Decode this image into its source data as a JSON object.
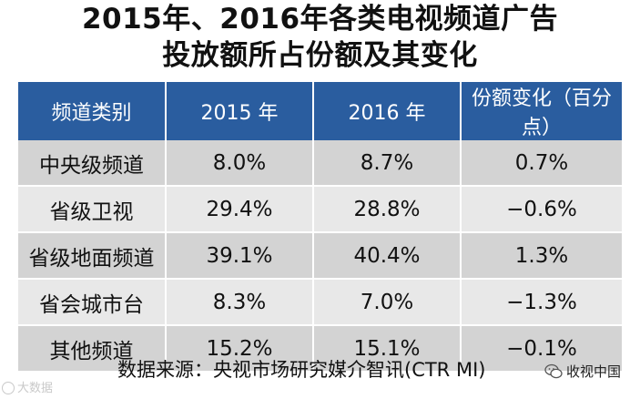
{
  "title": {
    "line1": "2015年、2016年各类电视频道广告",
    "line2": "投放额所占份额及其变化"
  },
  "table": {
    "headers": [
      "频道类别",
      "2015 年",
      "2016 年",
      "份额变化（百分点）"
    ],
    "rows": [
      [
        "中央级频道",
        "8.0%",
        "8.7%",
        "0.7%"
      ],
      [
        "省级卫视",
        "29.4%",
        "28.8%",
        "−0.6%"
      ],
      [
        "省级地面频道",
        "39.1%",
        "40.4%",
        "1.3%"
      ],
      [
        "省会城市台",
        "8.3%",
        "7.0%",
        "−1.3%"
      ],
      [
        "其他频道",
        "15.2%",
        "15.1%",
        "−0.1%"
      ]
    ]
  },
  "source": "数据来源：央视市场研究媒介智讯(CTR MI)",
  "watermarks": {
    "left": "大数据",
    "right": "收视中国",
    "right_icon": "wechat-icon"
  },
  "colors": {
    "header_bg": "#2a5d9f",
    "row_odd_bg": "#d3d3d3",
    "row_even_bg": "#e8e8e8"
  }
}
